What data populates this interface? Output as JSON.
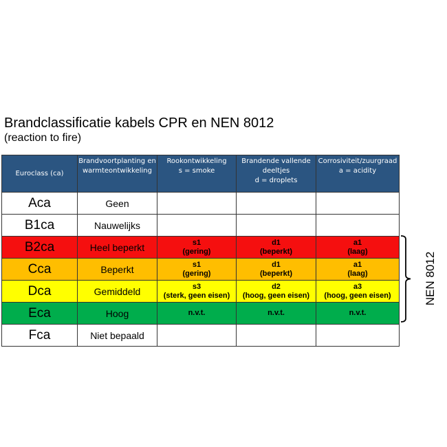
{
  "title": "Brandclassificatie kabels CPR en NEN 8012",
  "subtitle": "(reaction to fire)",
  "headers": [
    "Euroclass (ca)",
    "Brandvoortplanting en warmteontwikkeling",
    "Rookontwikkeling\ns = smoke",
    "Brandende vallende deeltjes\nd = droplets",
    "Corrosiviteit/zuurgraad\na = acidity"
  ],
  "rows": [
    {
      "cls": "Aca",
      "desc": "Geen",
      "smoke": "",
      "droplets": "",
      "acidity": "",
      "color": "#ffffff"
    },
    {
      "cls": "B1ca",
      "desc": "Nauwelijks",
      "smoke": "",
      "droplets": "",
      "acidity": "",
      "color": "#ffffff"
    },
    {
      "cls": "B2ca",
      "desc": "Heel beperkt",
      "smoke": "s1\n(gering)",
      "droplets": "d1\n(beperkt)",
      "acidity": "a1\n(laag)",
      "color": "#f50f0f"
    },
    {
      "cls": "Cca",
      "desc": "Beperkt",
      "smoke": "s1\n(gering)",
      "droplets": "d1\n(beperkt)",
      "acidity": "a1\n(laag)",
      "color": "#ffbe00"
    },
    {
      "cls": "Dca",
      "desc": "Gemiddeld",
      "smoke": "s3\n(sterk, geen eisen)",
      "droplets": "d2\n(hoog, geen eisen)",
      "acidity": "a3\n(hoog, geen eisen)",
      "color": "#ffff00"
    },
    {
      "cls": "Eca",
      "desc": "Hoog",
      "smoke": "n.v.t.",
      "droplets": "n.v.t.",
      "acidity": "n.v.t.",
      "color": "#00ad4c"
    },
    {
      "cls": "Fca",
      "desc": "Niet bepaald",
      "smoke": "",
      "droplets": "",
      "acidity": "",
      "color": "#ffffff"
    }
  ],
  "bracket_label": "NEN 8012",
  "header_color": "#2b5581"
}
